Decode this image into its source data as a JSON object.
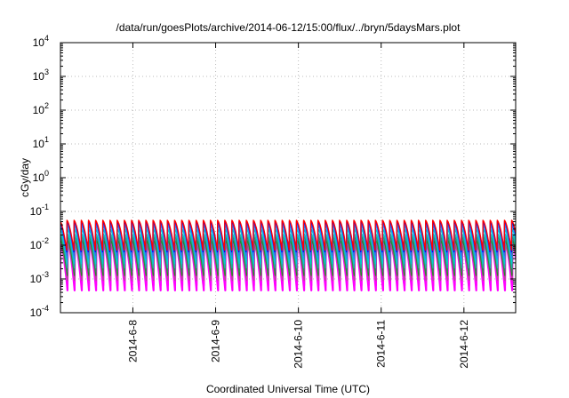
{
  "chart_data": {
    "type": "line",
    "title": "/data/run/goesPlots/archive/2014-06-12/15:00/flux/../bryn/5daysMars.plot",
    "xlabel": "Coordinated Universal Time (UTC)",
    "ylabel": "cGy/day",
    "yscale": "log",
    "ylim": [
      0.0001,
      10000
    ],
    "xlim": [
      "2014-06-07 03:00",
      "2014-06-12 15:00"
    ],
    "grid": true,
    "legend": "none",
    "x_ticks": [
      {
        "value": "2014-06-08",
        "label": "2014-6-8"
      },
      {
        "value": "2014-06-09",
        "label": "2014-6-9"
      },
      {
        "value": "2014-06-10",
        "label": "2014-6-10"
      },
      {
        "value": "2014-06-11",
        "label": "2014-6-11"
      },
      {
        "value": "2014-06-12",
        "label": "2014-6-12"
      }
    ],
    "y_ticks": [
      {
        "value": 0.0001,
        "base": "10",
        "exp": "-4"
      },
      {
        "value": 0.001,
        "base": "10",
        "exp": "-3"
      },
      {
        "value": 0.01,
        "base": "10",
        "exp": "-2"
      },
      {
        "value": 0.1,
        "base": "10",
        "exp": "-1"
      },
      {
        "value": 1,
        "base": "10",
        "exp": "0"
      },
      {
        "value": 10,
        "base": "10",
        "exp": "1"
      },
      {
        "value": 100,
        "base": "10",
        "exp": "2"
      },
      {
        "value": 1000,
        "base": "10",
        "exp": "3"
      },
      {
        "value": 10000,
        "base": "10",
        "exp": "4"
      }
    ],
    "oscillation_period_hours": 2.08,
    "series": [
      {
        "color": "#ff00ff",
        "peak": 0.012,
        "trough": 0.0004
      },
      {
        "color": "#ff00ff",
        "peak": 0.015,
        "trough": 0.0006
      },
      {
        "color": "#b05090",
        "peak": 0.01,
        "trough": 0.0009
      },
      {
        "color": "#228b22",
        "peak": 0.014,
        "trough": 0.0012
      },
      {
        "color": "#2e8b57",
        "peak": 0.018,
        "trough": 0.0016
      },
      {
        "color": "#20b2aa",
        "peak": 0.022,
        "trough": 0.002
      },
      {
        "color": "#00ced1",
        "peak": 0.03,
        "trough": 0.0028
      },
      {
        "color": "#1e90ff",
        "peak": 0.038,
        "trough": 0.0038
      },
      {
        "color": "#4169e1",
        "peak": 0.045,
        "trough": 0.005
      },
      {
        "color": "#0000ff",
        "peak": 0.05,
        "trough": 0.006
      },
      {
        "color": "#ff0000",
        "peak": 0.055,
        "trough": 0.007
      }
    ]
  }
}
